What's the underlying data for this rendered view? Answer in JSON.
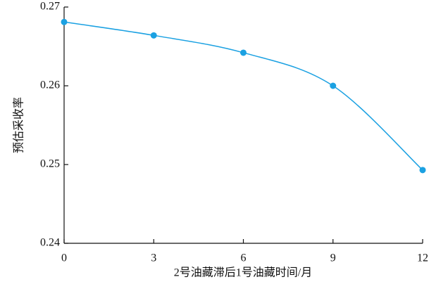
{
  "chart_data": {
    "type": "line",
    "x_label": "2号油藏滞后1号油藏时间/月",
    "y_label": "预估采收率",
    "x": [
      0,
      3,
      6,
      9,
      12
    ],
    "series": [
      {
        "name": "预估采收率",
        "color": "#1ba1e2",
        "values": [
          0.2681,
          0.2664,
          0.2642,
          0.26,
          0.2493
        ]
      }
    ],
    "xlim": [
      0,
      12
    ],
    "xticks": [
      0,
      3,
      6,
      9,
      12
    ],
    "ylim": [
      0.24,
      0.27
    ],
    "yticks": [
      0.24,
      0.25,
      0.26,
      0.27
    ],
    "smooth": true,
    "markers": true
  }
}
